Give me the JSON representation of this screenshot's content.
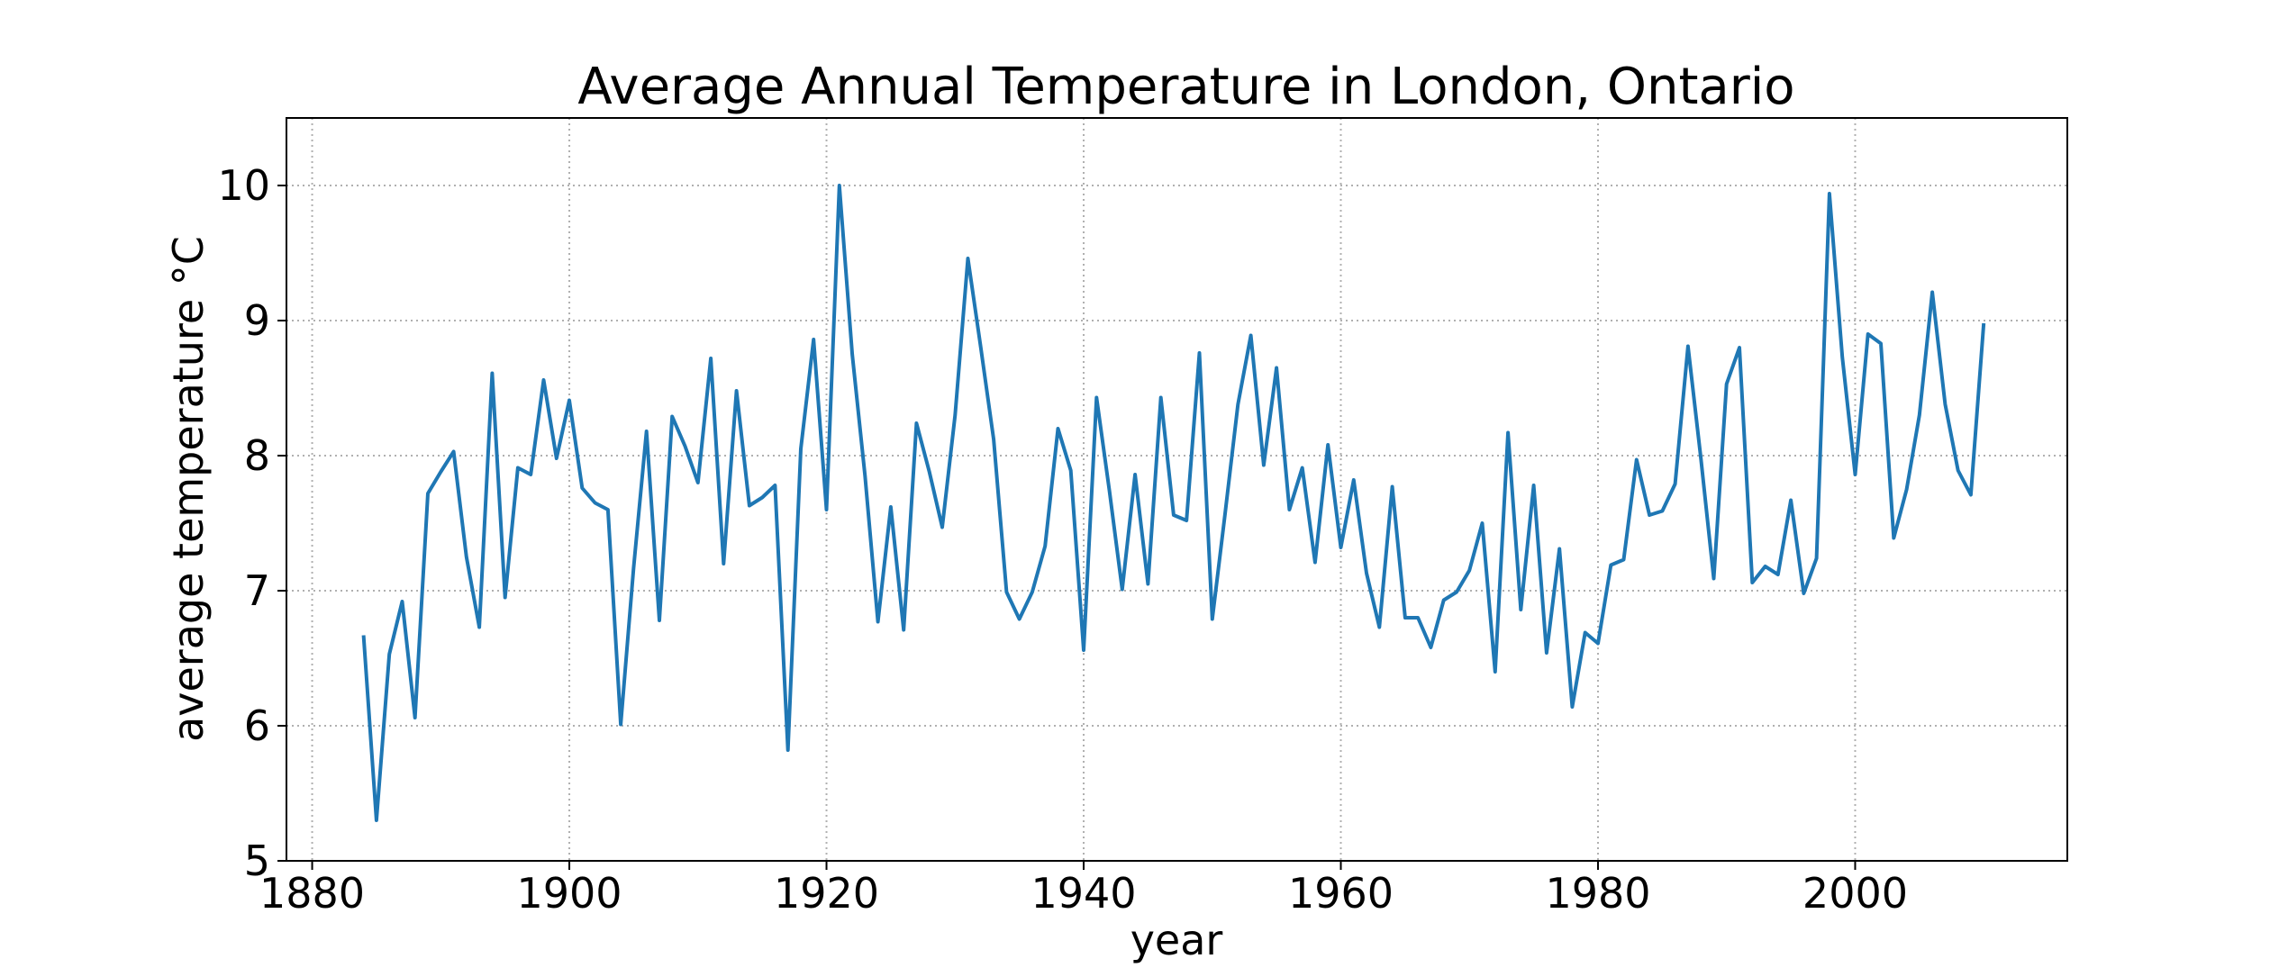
{
  "chart_data": {
    "type": "line",
    "title": "Average Annual Temperature in London, Ontario",
    "xlabel": "year",
    "ylabel": "average temperature °C",
    "xlim": [
      1878,
      2016.5
    ],
    "ylim": [
      5,
      10.5
    ],
    "xticks": [
      1880,
      1900,
      1920,
      1940,
      1960,
      1980,
      2000
    ],
    "yticks": [
      5,
      6,
      7,
      8,
      9,
      10
    ],
    "grid": true,
    "grid_style": "dotted",
    "legend": "none",
    "line_color": "#1f77b4",
    "series": [
      {
        "x": [
          1884,
          1885,
          1886,
          1887,
          1888,
          1889,
          1890,
          1891,
          1892,
          1893,
          1894,
          1895,
          1896,
          1897,
          1898,
          1899,
          1900,
          1901,
          1902,
          1903,
          1904,
          1905,
          1906,
          1907,
          1908,
          1909,
          1910,
          1911,
          1912,
          1913,
          1914,
          1915,
          1916,
          1917,
          1918,
          1919,
          1920,
          1921,
          1922,
          1923,
          1924,
          1925,
          1926,
          1927,
          1928,
          1929,
          1930,
          1931,
          1932,
          1933,
          1934,
          1935,
          1936,
          1937,
          1938,
          1939,
          1940,
          1941,
          1942,
          1943,
          1944,
          1945,
          1946,
          1947,
          1948,
          1949,
          1950,
          1951,
          1952,
          1953,
          1954,
          1955,
          1956,
          1957,
          1958,
          1959,
          1960,
          1961,
          1962,
          1963,
          1964,
          1965,
          1966,
          1967,
          1968,
          1969,
          1970,
          1971,
          1972,
          1973,
          1974,
          1975,
          1976,
          1977,
          1978,
          1979,
          1980,
          1981,
          1982,
          1983,
          1984,
          1985,
          1986,
          1987,
          1988,
          1989,
          1990,
          1991,
          1992,
          1993,
          1994,
          1995,
          1996,
          1997,
          1998,
          1999,
          2000,
          2001,
          2002,
          2003,
          2004,
          2005,
          2006,
          2007,
          2008,
          2009,
          2010
        ],
        "values": [
          6.67,
          5.3,
          6.53,
          6.92,
          6.06,
          7.72,
          7.88,
          8.03,
          7.25,
          6.73,
          8.61,
          6.95,
          7.91,
          7.86,
          8.56,
          7.98,
          8.41,
          7.76,
          7.65,
          7.6,
          6.01,
          7.17,
          8.18,
          6.78,
          8.29,
          8.07,
          7.8,
          8.72,
          7.2,
          8.48,
          7.63,
          7.69,
          7.78,
          5.82,
          8.05,
          8.86,
          7.6,
          10.0,
          8.75,
          7.85,
          6.77,
          7.62,
          6.71,
          8.24,
          7.88,
          7.47,
          8.3,
          9.46,
          8.8,
          8.12,
          6.99,
          6.79,
          6.99,
          7.33,
          8.2,
          7.89,
          6.56,
          8.43,
          7.74,
          7.01,
          7.86,
          7.05,
          8.43,
          7.56,
          7.52,
          8.76,
          6.79,
          7.57,
          8.38,
          8.89,
          7.93,
          8.65,
          7.6,
          7.91,
          7.21,
          8.08,
          7.32,
          7.82,
          7.13,
          6.73,
          7.77,
          6.8,
          6.8,
          6.58,
          6.93,
          6.99,
          7.15,
          7.5,
          6.4,
          8.17,
          6.86,
          7.78,
          6.54,
          7.31,
          6.14,
          6.69,
          6.61,
          7.19,
          7.23,
          7.97,
          7.56,
          7.59,
          7.79,
          8.81,
          7.98,
          7.09,
          8.53,
          8.8,
          7.06,
          7.18,
          7.12,
          7.67,
          6.98,
          7.24,
          9.94,
          8.73,
          7.86,
          8.9,
          8.83,
          7.39,
          7.75,
          8.3,
          9.21,
          8.38,
          7.89,
          7.71,
          8.98
        ]
      }
    ]
  }
}
